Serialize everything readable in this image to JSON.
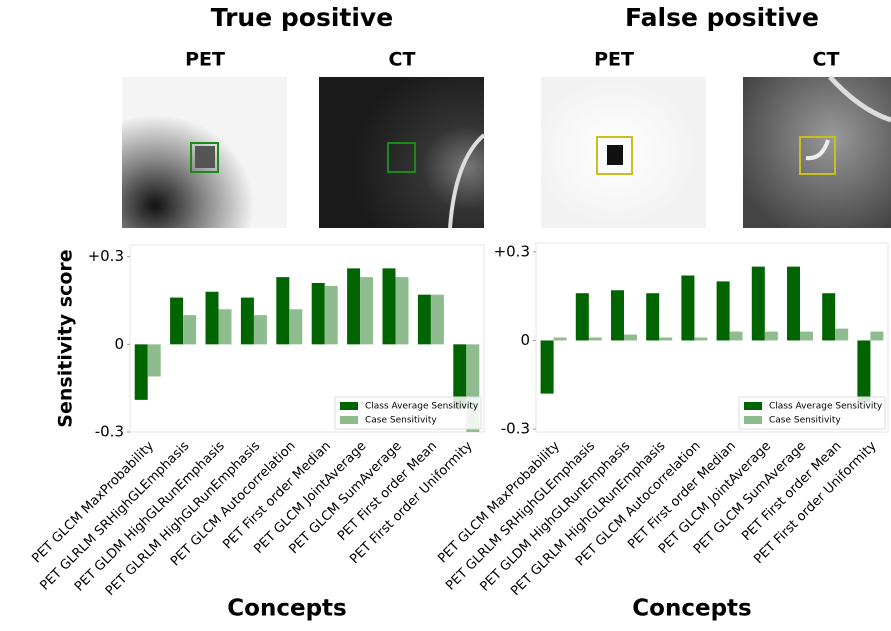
{
  "panels": [
    {
      "title": "True positive",
      "image_labels": [
        "PET",
        "CT"
      ]
    },
    {
      "title": "False positive",
      "image_labels": [
        "PET",
        "CT"
      ]
    }
  ],
  "chart_data": [
    {
      "type": "bar",
      "y_label": "Sensitivity score",
      "x_label": "Concepts",
      "categories": [
        "PET GLCM MaxProbability",
        "PET GLRLM SRHighGLEmphasis",
        "PET GLDM HighGLRunEmphasis",
        "PET GLRLM HighGLRunEmphasis",
        "PET GLCM Autocorrelation",
        "PET First order Median",
        "PET GLCM JointAverage",
        "PET GLCM SumAverage",
        "PET First order Mean",
        "PET First order Uniformity"
      ],
      "series": [
        {
          "name": "Class Average Sensitivity",
          "color": "#006400",
          "values": [
            -0.19,
            0.16,
            0.18,
            0.16,
            0.23,
            0.21,
            0.26,
            0.26,
            0.17,
            -0.22
          ]
        },
        {
          "name": "Case Sensitivity",
          "color": "#8fbc8f",
          "values": [
            -0.11,
            0.1,
            0.12,
            0.1,
            0.12,
            0.2,
            0.23,
            0.23,
            0.17,
            -0.3
          ]
        }
      ],
      "ylim": [
        -0.3,
        0.34
      ],
      "yticks": [
        {
          "value": 0.3,
          "label": "+0.3"
        },
        0,
        -0.3
      ],
      "legend": "lower right"
    },
    {
      "type": "bar",
      "x_label": "Concepts",
      "categories": [
        "PET GLCM MaxProbability",
        "PET GLRLM SRHighGLEmphasis",
        "PET GLDM HighGLRunEmphasis",
        "PET GLRLM HighGLRunEmphasis",
        "PET GLCM Autocorrelation",
        "PET First order Median",
        "PET GLCM JointAverage",
        "PET GLCM SumAverage",
        "PET First order Mean",
        "PET First order Uniformity"
      ],
      "series": [
        {
          "name": "Class Average Sensitivity",
          "color": "#006400",
          "values": [
            -0.18,
            0.16,
            0.17,
            0.16,
            0.22,
            0.2,
            0.25,
            0.25,
            0.16,
            -0.21
          ]
        },
        {
          "name": "Case Sensitivity",
          "color": "#8fbc8f",
          "values": [
            0.01,
            0.01,
            0.02,
            0.01,
            0.01,
            0.03,
            0.03,
            0.03,
            0.04,
            0.03
          ]
        }
      ],
      "ylim": [
        -0.31,
        0.33
      ],
      "yticks": [
        {
          "value": 0.3,
          "label": "+0.3"
        },
        0,
        -0.3
      ],
      "legend": "lower right"
    }
  ]
}
